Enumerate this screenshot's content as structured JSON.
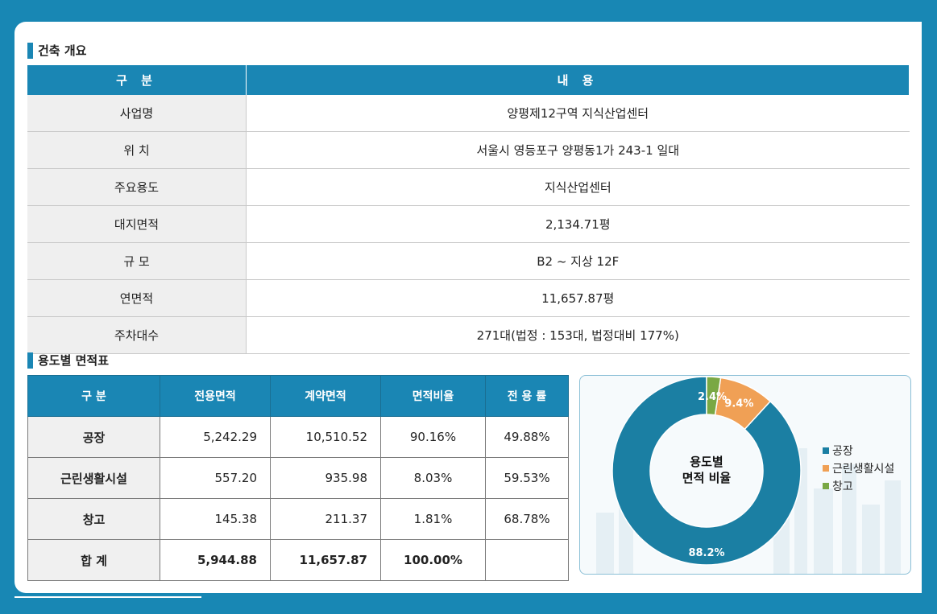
{
  "overview": {
    "title": "건축 개요",
    "header": [
      "구 분",
      "내 용"
    ],
    "rows": [
      {
        "label": "사업명",
        "value": "양평제12구역 지식산업센터"
      },
      {
        "label": "위 치",
        "value": "서울시 영등포구 양평동1가 243-1 일대"
      },
      {
        "label": "주요용도",
        "value": "지식산업센터"
      },
      {
        "label": "대지면적",
        "value": "2,134.71평"
      },
      {
        "label": "규 모",
        "value": "B2 ~ 지상 12F"
      },
      {
        "label": "연면적",
        "value": "11,657.87평"
      },
      {
        "label": "주차대수",
        "value": "271대(법정 : 153대, 법정대비 177%)"
      }
    ]
  },
  "area_table": {
    "title": "용도별 면적표",
    "header": [
      "구 분",
      "전용면적",
      "계약면적",
      "면적비율",
      "전 용 률"
    ],
    "rows": [
      [
        "공장",
        "5,242.29",
        "10,510.52",
        "90.16%",
        "49.88%"
      ],
      [
        "근린생활시설",
        "557.20",
        "935.98",
        "8.03%",
        "59.53%"
      ],
      [
        "창고",
        "145.38",
        "211.37",
        "1.81%",
        "68.78%"
      ],
      [
        "합 계",
        "5,944.88",
        "11,657.87",
        "100.00%",
        ""
      ]
    ]
  },
  "chart_data": {
    "type": "pie",
    "style": "donut",
    "title": "용도별 면적 비율",
    "title_lines": [
      "용도별",
      "면적 비율"
    ],
    "categories": [
      "공장",
      "근린생활시설",
      "창고"
    ],
    "values": [
      88.2,
      9.4,
      2.4
    ],
    "labels": [
      "88.2%",
      "9.4%",
      "2.4%"
    ],
    "colors": [
      "#1b7fa3",
      "#f0a055",
      "#7aa844"
    ],
    "legend_position": "right"
  }
}
